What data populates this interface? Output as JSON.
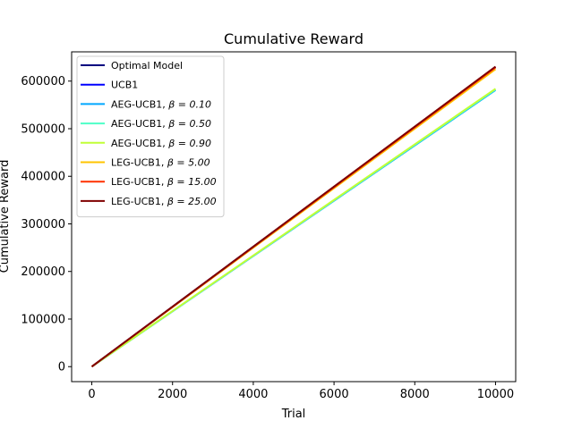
{
  "chart_data": {
    "type": "line",
    "title": "Cumulative Reward",
    "xlabel": "Trial",
    "ylabel": "Cumulative Reward",
    "xlim": [
      -500,
      10500
    ],
    "ylim": [
      -31500,
      661500
    ],
    "xticks": [
      0,
      2000,
      4000,
      6000,
      8000,
      10000
    ],
    "xtick_labels": [
      "0",
      "2000",
      "4000",
      "6000",
      "8000",
      "10000"
    ],
    "yticks": [
      0,
      100000,
      200000,
      300000,
      400000,
      500000,
      600000
    ],
    "ytick_labels": [
      "0",
      "100000",
      "200000",
      "300000",
      "400000",
      "500000",
      "600000"
    ],
    "grid": false,
    "legend_position": "upper left",
    "series": [
      {
        "name": "Optimal Model",
        "label_main": "Optimal Model",
        "label_beta": "",
        "color": "#00007f",
        "x": [
          0,
          10000
        ],
        "y": [
          0,
          630000
        ]
      },
      {
        "name": "UCB1",
        "label_main": "UCB1",
        "label_beta": "",
        "color": "#0000ff",
        "x": [
          0,
          10000
        ],
        "y": [
          0,
          629500
        ]
      },
      {
        "name": "AEG-UCB1, β = 0.10",
        "label_main": "AEG-UCB1, ",
        "label_beta": "β = 0.10",
        "color": "#00a8ff",
        "x": [
          0,
          10000
        ],
        "y": [
          0,
          581000
        ]
      },
      {
        "name": "AEG-UCB1, β = 0.50",
        "label_main": "AEG-UCB1, ",
        "label_beta": "β = 0.50",
        "color": "#4effc7",
        "x": [
          0,
          10000
        ],
        "y": [
          0,
          582500
        ]
      },
      {
        "name": "AEG-UCB1, β = 0.90",
        "label_main": "AEG-UCB1, ",
        "label_beta": "β = 0.90",
        "color": "#c1ff36",
        "x": [
          0,
          10000
        ],
        "y": [
          0,
          584000
        ]
      },
      {
        "name": "LEG-UCB1, β = 5.00",
        "label_main": "LEG-UCB1, ",
        "label_beta": "β = 5.00",
        "color": "#ffc400",
        "x": [
          0,
          10000
        ],
        "y": [
          0,
          625000
        ]
      },
      {
        "name": "LEG-UCB1, β = 15.00",
        "label_main": "LEG-UCB1, ",
        "label_beta": "β = 15.00",
        "color": "#ff3000",
        "x": [
          0,
          10000
        ],
        "y": [
          0,
          628500
        ]
      },
      {
        "name": "LEG-UCB1, β = 25.00",
        "label_main": "LEG-UCB1, ",
        "label_beta": "β = 25.00",
        "color": "#7f0000",
        "x": [
          0,
          10000
        ],
        "y": [
          0,
          630500
        ]
      }
    ]
  }
}
